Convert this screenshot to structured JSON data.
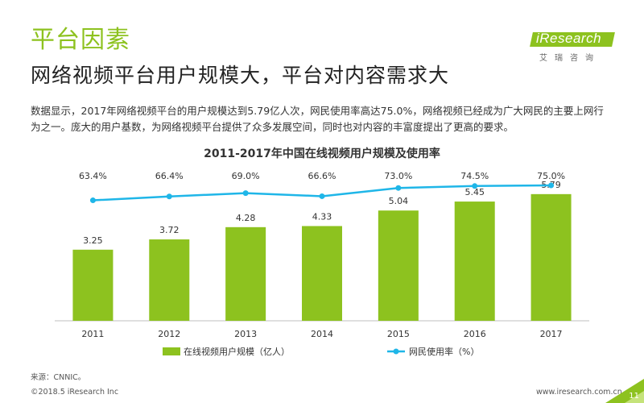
{
  "header": {
    "title": "平台因素",
    "subtitle": "网络视频平台用户规模大，平台对内容需求大"
  },
  "logo": {
    "brand": "iResearch",
    "chinese": "艾瑞咨询"
  },
  "intro": "数据显示，2017年网络视频平台的用户规模达到5.79亿人次，网民使用率高达75.0%，网络视频已经成为广大网民的主要上网行为之一。庞大的用户基数，为网络视频平台提供了众多发展空间，同时也对内容的丰富度提出了更高的要求。",
  "colors": {
    "accent": "#8dc21f",
    "bar": "#8dc21f",
    "line": "#1fb6e8"
  },
  "chart_data": {
    "type": "bar",
    "title": "2011-2017年中国在线视频用户规模及使用率",
    "categories": [
      "2011",
      "2012",
      "2013",
      "2014",
      "2015",
      "2016",
      "2017"
    ],
    "series": [
      {
        "name": "在线视频用户规模（亿人）",
        "type": "bar",
        "values": [
          3.25,
          3.72,
          4.28,
          4.33,
          5.04,
          5.45,
          5.79
        ],
        "labels": [
          "3.25",
          "3.72",
          "4.28",
          "4.33",
          "5.04",
          "5.45",
          "5.79"
        ]
      },
      {
        "name": "网民使用率（%）",
        "type": "line",
        "values": [
          63.4,
          66.4,
          69.0,
          66.6,
          73.0,
          74.5,
          75.0
        ],
        "labels": [
          "63.4%",
          "66.4%",
          "69.0%",
          "66.6%",
          "73.0%",
          "74.5%",
          "75.0%"
        ]
      }
    ],
    "ylim_bar": [
      0,
      7
    ],
    "ylim_line": [
      0,
      100
    ],
    "grid": false,
    "legend": "bottom"
  },
  "footer": {
    "source": "来源：CNNIC。",
    "copyright": "©2018.5 iResearch Inc",
    "website": "www.iresearch.com.cn",
    "page": "11"
  }
}
